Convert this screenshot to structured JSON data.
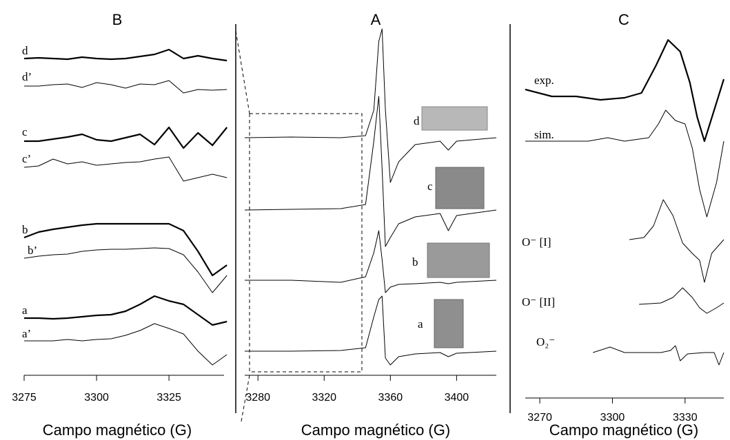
{
  "chart_data": [
    {
      "type": "line",
      "title": "B",
      "x_label": "Campo magnético (G)",
      "xlim": [
        3275,
        3344
      ],
      "xticks": [
        3275,
        3300,
        3325
      ],
      "x": [
        3275,
        3280,
        3285,
        3290,
        3295,
        3300,
        3305,
        3310,
        3315,
        3320,
        3325,
        3330,
        3335,
        3340,
        3345
      ],
      "series": [
        {
          "name": "d",
          "color": "#000",
          "width": 2.2,
          "values": [
            0,
            1,
            0,
            -1,
            2,
            0,
            -1,
            0,
            3,
            6,
            13,
            0,
            4,
            0,
            -3
          ]
        },
        {
          "name": "d’",
          "color": "#000",
          "width": 1,
          "values": [
            0,
            0,
            2,
            3,
            -2,
            5,
            2,
            -3,
            3,
            2,
            8,
            -10,
            -5,
            -6,
            -5
          ]
        },
        {
          "name": "c",
          "color": "#000",
          "width": 2.2,
          "values": [
            0,
            0,
            3,
            6,
            10,
            2,
            0,
            5,
            10,
            -5,
            20,
            -10,
            12,
            -6,
            20
          ]
        },
        {
          "name": "c’",
          "color": "#000",
          "width": 1,
          "values": [
            0,
            2,
            12,
            5,
            8,
            3,
            5,
            7,
            8,
            12,
            15,
            -20,
            -15,
            -10,
            -15
          ]
        },
        {
          "name": "b",
          "color": "#000",
          "width": 2.2,
          "values": [
            0,
            8,
            12,
            15,
            18,
            20,
            20,
            20,
            20,
            20,
            20,
            10,
            -20,
            -55,
            -40
          ]
        },
        {
          "name": "b’",
          "color": "#000",
          "width": 1,
          "values": [
            0,
            3,
            5,
            6,
            10,
            12,
            13,
            13,
            14,
            15,
            14,
            5,
            -20,
            -50,
            -25
          ]
        },
        {
          "name": "a",
          "color": "#000",
          "width": 2.2,
          "values": [
            0,
            0,
            -1,
            0,
            2,
            4,
            5,
            10,
            20,
            32,
            25,
            20,
            5,
            -10,
            -5
          ]
        },
        {
          "name": "a’",
          "color": "#000",
          "width": 1,
          "values": [
            0,
            0,
            0,
            2,
            0,
            2,
            3,
            8,
            15,
            25,
            18,
            10,
            -15,
            -35,
            -20
          ]
        }
      ]
    },
    {
      "type": "line",
      "title": "A",
      "x_label": "Campo magnético (G)",
      "xlim": [
        3272,
        3424
      ],
      "xticks": [
        3280,
        3320,
        3360,
        3400
      ],
      "x": [
        3272,
        3300,
        3330,
        3345,
        3350,
        3353,
        3355,
        3357,
        3360,
        3365,
        3375,
        3390,
        3395,
        3400,
        3424
      ],
      "series": [
        {
          "name": "d",
          "color": "#000",
          "width": 1,
          "values": [
            0,
            1,
            0,
            3,
            40,
            140,
            158,
            40,
            -65,
            -35,
            -10,
            -5,
            -18,
            -5,
            0
          ]
        },
        {
          "name": "c",
          "color": "#000",
          "width": 1,
          "values": [
            0,
            1,
            2,
            8,
            100,
            165,
            60,
            -53,
            -40,
            -20,
            -10,
            -5,
            -30,
            -8,
            0
          ]
        },
        {
          "name": "b",
          "color": "#000",
          "width": 1,
          "values": [
            0,
            0,
            -3,
            5,
            40,
            72,
            30,
            -18,
            -10,
            -6,
            -5,
            -3,
            -5,
            -3,
            0
          ]
        },
        {
          "name": "a",
          "color": "#000",
          "width": 1,
          "values": [
            0,
            0,
            1,
            5,
            50,
            75,
            80,
            -10,
            -20,
            -8,
            -4,
            -2,
            -8,
            -3,
            0
          ]
        }
      ]
    },
    {
      "type": "line",
      "title": "C",
      "x_label": "Campo magnético (G)",
      "xlim": [
        3264,
        3346
      ],
      "xticks": [
        3270,
        3300,
        3330
      ],
      "series": [
        {
          "name": "exp.",
          "color": "#000",
          "width": 2.2,
          "x": [
            3264,
            3275,
            3285,
            3295,
            3305,
            3312,
            3318,
            3323,
            3328,
            3332,
            3335,
            3338,
            3342,
            3346
          ],
          "values": [
            10,
            0,
            0,
            -5,
            -2,
            5,
            45,
            82,
            65,
            20,
            -30,
            -65,
            -20,
            25
          ]
        },
        {
          "name": "sim.",
          "color": "#000",
          "width": 1,
          "x": [
            3264,
            3290,
            3298,
            3305,
            3315,
            3319,
            3322,
            3326,
            3330,
            3333,
            3336,
            3339,
            3343,
            3346
          ],
          "values": [
            0,
            0,
            5,
            0,
            5,
            25,
            45,
            30,
            25,
            -10,
            -70,
            -110,
            -60,
            0
          ]
        },
        {
          "name": "O⁻ [I]",
          "color": "#000",
          "width": 1,
          "x": [
            3307,
            3313,
            3317,
            3321,
            3325,
            3329,
            3333,
            3336,
            3338,
            3341,
            3346
          ],
          "values": [
            0,
            3,
            20,
            58,
            35,
            -5,
            -20,
            -30,
            -62,
            -20,
            0
          ]
        },
        {
          "name": "O⁻ [II]",
          "color": "#000",
          "width": 1,
          "x": [
            3311,
            3320,
            3325,
            3329,
            3333,
            3336,
            3339,
            3343,
            3346
          ],
          "values": [
            0,
            2,
            10,
            24,
            10,
            -5,
            -13,
            -5,
            2
          ]
        },
        {
          "name": "O₂⁻",
          "color": "#000",
          "width": 1,
          "x": [
            3292,
            3299,
            3305,
            3320,
            3324,
            3326,
            3328,
            3331,
            3338,
            3342,
            3344,
            3346
          ],
          "values": [
            0,
            8,
            0,
            0,
            3,
            10,
            -12,
            -2,
            0,
            0,
            -18,
            0
          ]
        }
      ]
    }
  ]
}
